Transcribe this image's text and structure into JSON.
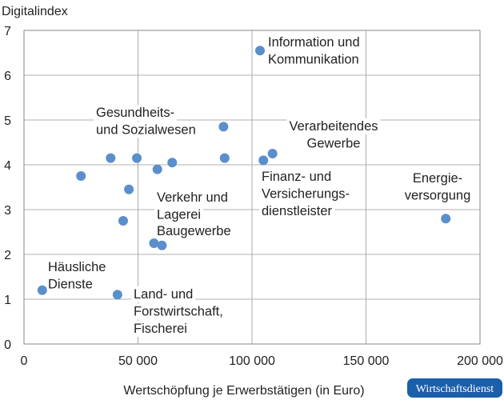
{
  "chart_data": {
    "type": "scatter",
    "y_label": "Digitalindex",
    "x_label": "Wertschöpfung je Erwerbstätigen (in Euro)",
    "source": "Wirtschaftsdienst",
    "color": "#5a8fcc",
    "grid": true,
    "x": [
      8000,
      41000,
      38000,
      25000,
      46000,
      43500,
      49500,
      58500,
      65000,
      57000,
      60500,
      87500,
      88000,
      103500,
      105000,
      109000,
      185000
    ],
    "values": [
      1.2,
      1.1,
      4.15,
      3.75,
      3.45,
      2.75,
      4.15,
      3.9,
      4.05,
      2.25,
      2.2,
      4.85,
      4.15,
      6.55,
      4.1,
      4.25,
      2.8
    ],
    "xlim": [
      0,
      200000
    ],
    "xticks": [
      0,
      {
        "value": 50000,
        "label": "50 000"
      },
      {
        "value": 100000,
        "label": "100 000"
      },
      {
        "value": 150000,
        "label": "150 000"
      },
      {
        "value": 200000,
        "label": "200 000"
      }
    ],
    "ylim": [
      0,
      7
    ],
    "yticks": [
      0,
      1,
      2,
      3,
      4,
      5,
      6,
      7
    ],
    "annotations": [
      {
        "lines": [
          "Information und",
          "Kommunikation"
        ]
      },
      {
        "lines": [
          "Gesundheits-",
          "und Sozialwesen"
        ]
      },
      {
        "lines": [
          "Verarbeitendes",
          "Gewerbe"
        ]
      },
      {
        "lines": [
          "Finanz- und",
          "Versicherungs-",
          "dienstleister"
        ]
      },
      {
        "lines": [
          "Energie-",
          "versorgung"
        ]
      },
      {
        "lines": [
          "Verkehr und",
          "Lagerei"
        ]
      },
      {
        "lines": [
          "Baugewerbe"
        ]
      },
      {
        "lines": [
          "Häusliche",
          "Dienste"
        ]
      },
      {
        "lines": [
          "Land- und",
          "Forstwirtschaft,",
          "Fischerei"
        ]
      }
    ]
  }
}
